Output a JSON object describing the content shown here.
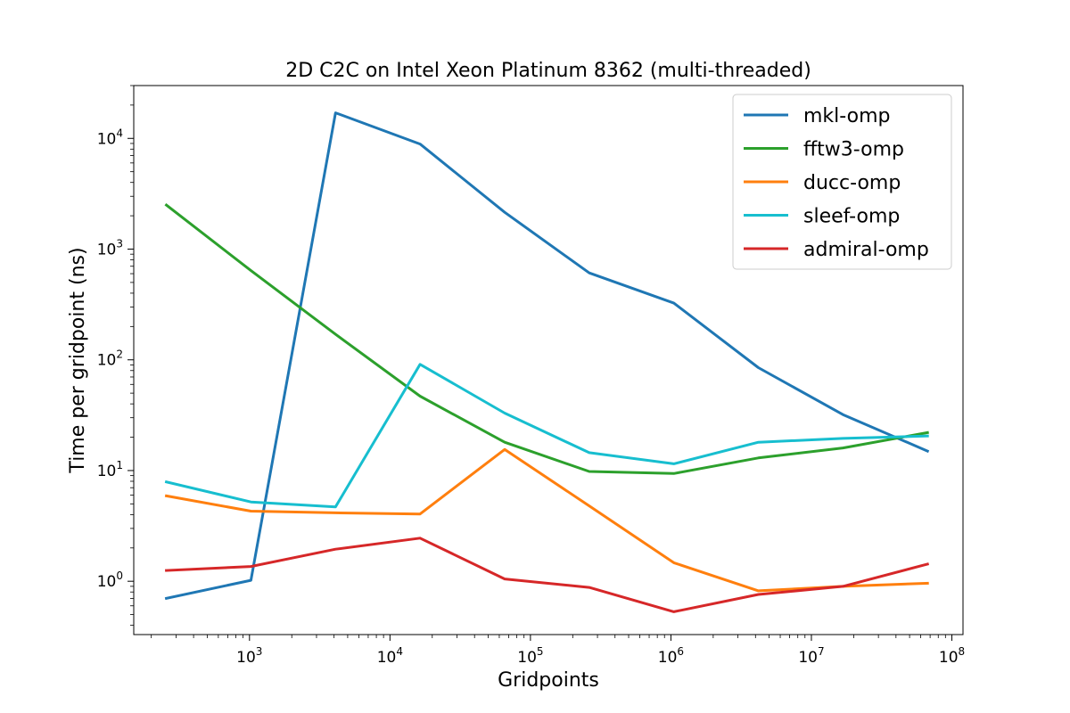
{
  "chart_data": {
    "type": "line",
    "title": "2D C2C on Intel Xeon Platinum 8362 (multi-threaded)",
    "xlabel": "Gridpoints",
    "ylabel": "Time per gridpoint (ns)",
    "xscale": "log",
    "yscale": "log",
    "xlim": [
      150,
      120000000
    ],
    "ylim": [
      0.33,
      30000
    ],
    "x_ticks": [
      {
        "value": 1000,
        "base": "10",
        "exp": "3"
      },
      {
        "value": 10000,
        "base": "10",
        "exp": "4"
      },
      {
        "value": 100000,
        "base": "10",
        "exp": "5"
      },
      {
        "value": 1000000,
        "base": "10",
        "exp": "6"
      },
      {
        "value": 10000000,
        "base": "10",
        "exp": "7"
      },
      {
        "value": 100000000,
        "base": "10",
        "exp": "8"
      }
    ],
    "y_ticks": [
      {
        "value": 1,
        "base": "10",
        "exp": "0"
      },
      {
        "value": 10,
        "base": "10",
        "exp": "1"
      },
      {
        "value": 100,
        "base": "10",
        "exp": "2"
      },
      {
        "value": 1000,
        "base": "10",
        "exp": "3"
      },
      {
        "value": 10000,
        "base": "10",
        "exp": "4"
      }
    ],
    "grid": false,
    "legend_position": "top-right",
    "x": [
      256,
      1024,
      4096,
      16384,
      65536,
      262144,
      1048576,
      4194304,
      16777216,
      67108864
    ],
    "series": [
      {
        "name": "mkl-omp",
        "color": "#1f77b4",
        "values": [
          0.7,
          1.02,
          17000,
          8900,
          2150,
          610,
          325,
          85,
          32,
          15
        ]
      },
      {
        "name": "fftw3-omp",
        "color": "#2ca02c",
        "values": [
          2500,
          640,
          170,
          47,
          18,
          9.8,
          9.4,
          13,
          16,
          22
        ]
      },
      {
        "name": "ducc-omp",
        "color": "#ff7f0e",
        "values": [
          5.9,
          4.3,
          4.15,
          4.05,
          15.5,
          4.8,
          1.47,
          0.82,
          0.9,
          0.96
        ]
      },
      {
        "name": "sleef-omp",
        "color": "#17becf",
        "values": [
          7.9,
          5.2,
          4.7,
          91,
          33,
          14.5,
          11.5,
          18,
          19.5,
          20.5
        ]
      },
      {
        "name": "admiral-omp",
        "color": "#d62728",
        "values": [
          1.25,
          1.36,
          1.95,
          2.45,
          1.05,
          0.88,
          0.53,
          0.76,
          0.9,
          1.43
        ]
      }
    ]
  }
}
